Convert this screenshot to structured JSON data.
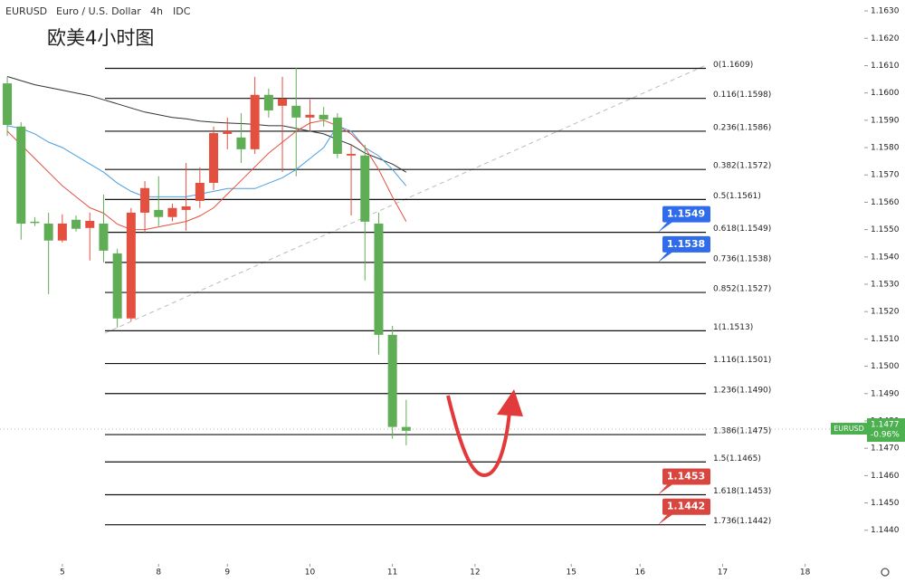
{
  "header": {
    "symbol": "EURUSD",
    "name": "Euro / U.S. Dollar",
    "interval": "4h",
    "source": "IDC"
  },
  "chart_data": {
    "type": "candlestick",
    "annotation": "欧美4小时图",
    "up_color": "#e4503f",
    "down_color": "#5fae55",
    "series": [
      {
        "name": "EURUSD",
        "open": [
          1.16035,
          1.15877,
          1.15529,
          1.15522,
          1.1546,
          1.15536,
          1.15506,
          1.15522,
          1.15413,
          1.15175,
          1.15562,
          1.15572,
          1.15546,
          1.15572,
          1.15605,
          1.15671,
          1.1585,
          1.15837,
          1.15794,
          1.15993,
          1.15953,
          1.15953,
          1.1591,
          1.1592,
          1.1591,
          1.15771,
          1.15771,
          1.15522,
          1.15115,
          1.14778
        ],
        "high": [
          1.16059,
          1.15893,
          1.15546,
          1.15562,
          1.15556,
          1.15552,
          1.15562,
          1.15628,
          1.1543,
          1.15579,
          1.15678,
          1.15695,
          1.15595,
          1.15744,
          1.15728,
          1.15877,
          1.1591,
          1.15926,
          1.16059,
          1.16016,
          1.16059,
          1.16092,
          1.15976,
          1.15949,
          1.15926,
          1.1581,
          1.1581,
          1.15562,
          1.15148,
          1.14877
        ],
        "low": [
          1.15843,
          1.15463,
          1.15513,
          1.15264,
          1.15453,
          1.15493,
          1.15387,
          1.1538,
          1.15142,
          1.15165,
          1.15486,
          1.15513,
          1.1553,
          1.15496,
          1.15579,
          1.15645,
          1.15794,
          1.15744,
          1.15777,
          1.1591,
          1.15711,
          1.15695,
          1.1586,
          1.15877,
          1.15761,
          1.15552,
          1.15314,
          1.15043,
          1.14735,
          1.14711
        ],
        "close": [
          1.15883,
          1.15522,
          1.15526,
          1.1546,
          1.15522,
          1.15503,
          1.15532,
          1.15423,
          1.15175,
          1.15562,
          1.15652,
          1.15546,
          1.15579,
          1.15585,
          1.15671,
          1.15853,
          1.1586,
          1.15794,
          1.15993,
          1.15936,
          1.15979,
          1.1591,
          1.1592,
          1.15903,
          1.15777,
          1.15777,
          1.15529,
          1.15115,
          1.14778,
          1.14764
        ]
      }
    ],
    "lines": [
      {
        "color": "#333333",
        "values": [
          1.1606,
          1.16045,
          1.1603,
          1.1602,
          1.1601,
          1.16,
          1.1599,
          1.15975,
          1.1596,
          1.15945,
          1.1593,
          1.1592,
          1.1591,
          1.15905,
          1.15897,
          1.15893,
          1.1589,
          1.15888,
          1.15885,
          1.1588,
          1.1588,
          1.1587,
          1.1586,
          1.1585,
          1.1583,
          1.1581,
          1.1578,
          1.1576,
          1.1574,
          1.1571
        ]
      },
      {
        "color": "#4a9ee0",
        "values": [
          1.1588,
          1.1587,
          1.1585,
          1.1582,
          1.158,
          1.1577,
          1.1574,
          1.1571,
          1.1567,
          1.1564,
          1.1562,
          1.1562,
          1.1562,
          1.1562,
          1.1563,
          1.1564,
          1.1565,
          1.1565,
          1.1565,
          1.1567,
          1.1569,
          1.1572,
          1.1576,
          1.158,
          1.1588,
          1.1586,
          1.158,
          1.1577,
          1.1572,
          1.1566
        ]
      },
      {
        "color": "#e4503f",
        "values": [
          1.1586,
          1.1581,
          1.1576,
          1.1571,
          1.1566,
          1.1562,
          1.1558,
          1.1556,
          1.1552,
          1.155,
          1.155,
          1.1551,
          1.1552,
          1.1553,
          1.1555,
          1.1558,
          1.1563,
          1.1568,
          1.1573,
          1.1578,
          1.1582,
          1.1586,
          1.1589,
          1.159,
          1.1588,
          1.1585,
          1.158,
          1.1572,
          1.1562,
          1.1553
        ]
      }
    ],
    "fib_levels": [
      {
        "label": "0(1.1609)",
        "value": 1.1609
      },
      {
        "label": "0.116(1.1598)",
        "value": 1.1598
      },
      {
        "label": "0.236(1.1586)",
        "value": 1.1586
      },
      {
        "label": "0.382(1.1572)",
        "value": 1.1572
      },
      {
        "label": "0.5(1.1561)",
        "value": 1.1561
      },
      {
        "label": "0.618(1.1549)",
        "value": 1.1549
      },
      {
        "label": "0.736(1.1538)",
        "value": 1.1538
      },
      {
        "label": "0.852(1.1527)",
        "value": 1.1527
      },
      {
        "label": "1(1.1513)",
        "value": 1.1513
      },
      {
        "label": "1.116(1.1501)",
        "value": 1.1501
      },
      {
        "label": "1.236(1.1490)",
        "value": 1.149
      },
      {
        "label": "1.386(1.1475)",
        "value": 1.1475
      },
      {
        "label": "1.5(1.1465)",
        "value": 1.1465
      },
      {
        "label": "1.618(1.1453)",
        "value": 1.1453
      },
      {
        "label": "1.736(1.1442)",
        "value": 1.1442
      }
    ],
    "price_badges": [
      {
        "value": 1.1549,
        "color": "#2f6bea"
      },
      {
        "value": 1.1538,
        "color": "#2f6bea"
      },
      {
        "value": 1.1453,
        "color": "#d8463f"
      },
      {
        "value": 1.1442,
        "color": "#d8463f"
      }
    ],
    "last_price": {
      "value": 1.1477,
      "change": "-0.96%",
      "color": "#4caf50"
    },
    "xlim": [
      -0.53,
      62.3
    ],
    "xticks": [
      {
        "value": 4,
        "label": "5"
      },
      {
        "value": 11,
        "label": "8"
      },
      {
        "value": 16,
        "label": "9"
      },
      {
        "value": 22,
        "label": "10"
      },
      {
        "value": 28,
        "label": "11"
      },
      {
        "value": 34,
        "label": "12"
      },
      {
        "value": 41,
        "label": "15"
      },
      {
        "value": 46,
        "label": "16"
      },
      {
        "value": 52,
        "label": "17"
      },
      {
        "value": 58,
        "label": "18"
      }
    ],
    "ylim": [
      1.1427,
      1.1634
    ],
    "yticks": [
      {
        "value": 1.144,
        "label": "1.1440"
      },
      {
        "value": 1.145,
        "label": "1.1450"
      },
      {
        "value": 1.146,
        "label": "1.1460"
      },
      {
        "value": 1.147,
        "label": "1.1470"
      },
      {
        "value": 1.148,
        "label": "1.1480"
      },
      {
        "value": 1.149,
        "label": "1.1490"
      },
      {
        "value": 1.15,
        "label": "1.1500"
      },
      {
        "value": 1.151,
        "label": "1.1510"
      },
      {
        "value": 1.152,
        "label": "1.1520"
      },
      {
        "value": 1.153,
        "label": "1.1530"
      },
      {
        "value": 1.154,
        "label": "1.1540"
      },
      {
        "value": 1.155,
        "label": "1.1550"
      },
      {
        "value": 1.156,
        "label": "1.1560"
      },
      {
        "value": 1.157,
        "label": "1.1570"
      },
      {
        "value": 1.158,
        "label": "1.1580"
      },
      {
        "value": 1.159,
        "label": "1.1590"
      },
      {
        "value": 1.16,
        "label": "1.1600"
      },
      {
        "value": 1.161,
        "label": "1.1610"
      },
      {
        "value": 1.162,
        "label": "1.1620"
      },
      {
        "value": 1.163,
        "label": "1.1630"
      }
    ]
  }
}
